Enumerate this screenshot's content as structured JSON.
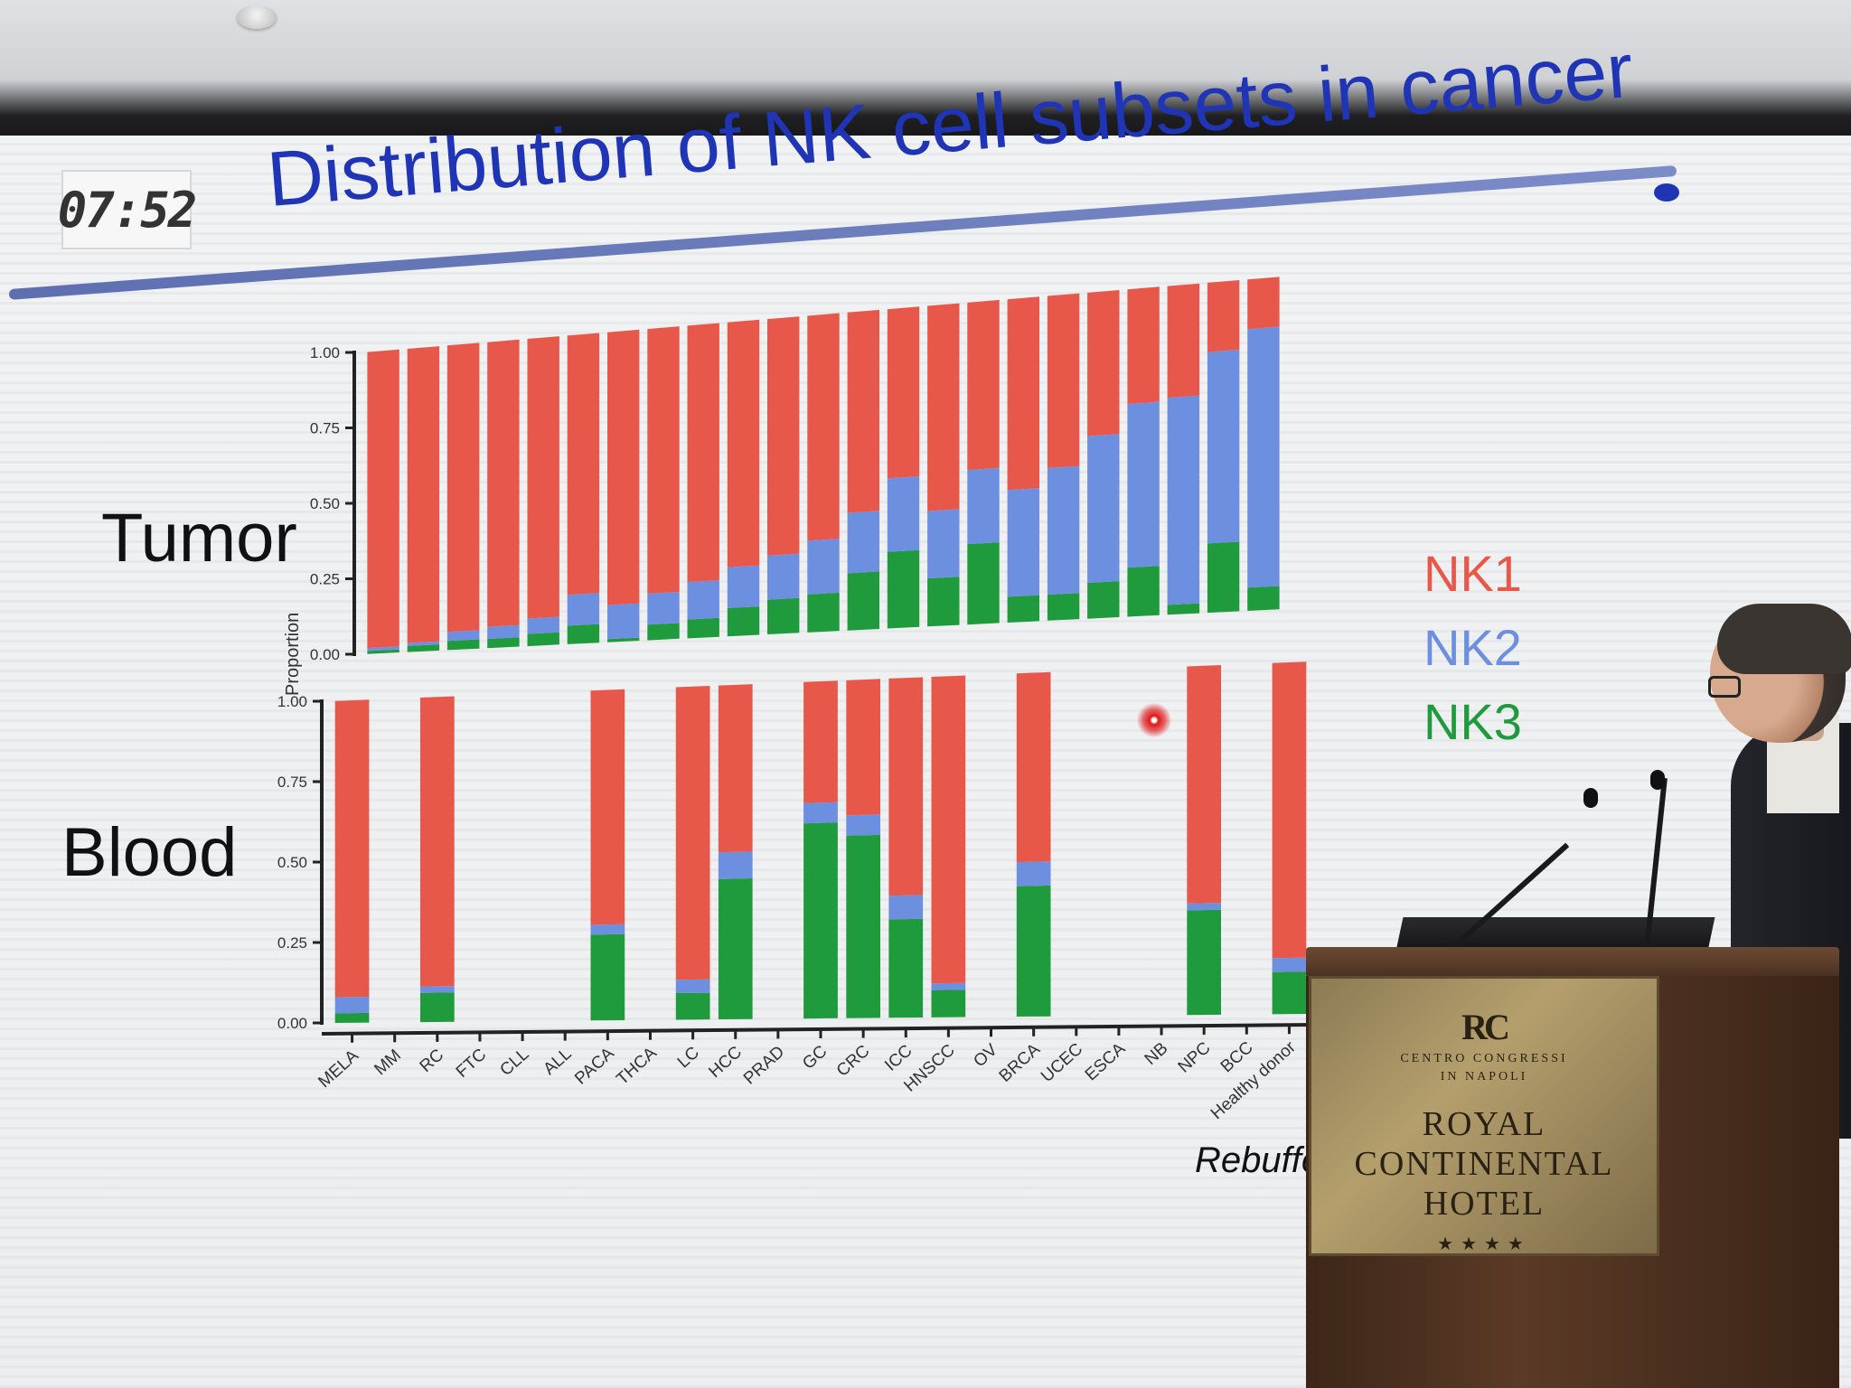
{
  "slide": {
    "timer": "07:52",
    "title": "Distribution of NK cell subsets in cancer",
    "row_labels": {
      "tumor": "Tumor",
      "blood": "Blood"
    },
    "y_axis_label": "Proportion",
    "citation": "Rebuffe"
  },
  "colors": {
    "NK1": "#e8584a",
    "NK2": "#6c8fe0",
    "NK3": "#1f9a3c",
    "title": "#1f35b5"
  },
  "legend": [
    "NK1",
    "NK2",
    "NK3"
  ],
  "podium": {
    "logo": "RC",
    "small_text_1": "CENTRO CONGRESSI",
    "small_text_2": "IN NAPOLI",
    "name_1": "ROYAL",
    "name_2": "CONTINENTAL",
    "name_3": "HOTEL",
    "stars": "★★★★"
  },
  "chart_data": [
    {
      "type": "bar",
      "stacked": true,
      "panel": "Tumor",
      "ylabel": "Proportion",
      "ylim": [
        0,
        1
      ],
      "yticks": [
        "0.00",
        "0.25",
        "0.50",
        "0.75",
        "1.00"
      ],
      "categories": [
        "MELA",
        "MM",
        "RC",
        "FTC",
        "CLL",
        "ALL",
        "PACA",
        "THCA",
        "LC",
        "HCC",
        "PRAD",
        "GC",
        "CRC",
        "ICC",
        "HNSCC",
        "OV",
        "BRCA",
        "UCEC",
        "ESCA",
        "NB",
        "NPC",
        "BCC",
        "Healthy donor"
      ],
      "series": [
        {
          "name": "NK3",
          "values": [
            0.01,
            0.02,
            0.03,
            0.03,
            0.04,
            0.06,
            0.01,
            0.05,
            0.06,
            0.09,
            0.11,
            0.12,
            0.18,
            0.24,
            0.15,
            0.25,
            0.08,
            0.08,
            0.11,
            0.15,
            0.03,
            0.21,
            0.07
          ]
        },
        {
          "name": "NK2",
          "values": [
            0.01,
            0.01,
            0.03,
            0.04,
            0.05,
            0.1,
            0.11,
            0.1,
            0.12,
            0.13,
            0.14,
            0.17,
            0.19,
            0.23,
            0.21,
            0.23,
            0.33,
            0.39,
            0.45,
            0.5,
            0.63,
            0.58,
            0.78
          ]
        },
        {
          "name": "NK1",
          "values": [
            0.98,
            0.97,
            0.94,
            0.93,
            0.91,
            0.84,
            0.88,
            0.85,
            0.82,
            0.78,
            0.75,
            0.71,
            0.63,
            0.53,
            0.64,
            0.52,
            0.59,
            0.53,
            0.44,
            0.35,
            0.34,
            0.21,
            0.15
          ]
        }
      ]
    },
    {
      "type": "bar",
      "stacked": true,
      "panel": "Blood",
      "ylabel": "Proportion",
      "ylim": [
        0,
        1
      ],
      "yticks": [
        "0.00",
        "0.25",
        "0.50",
        "0.75",
        "1.00"
      ],
      "categories": [
        "MELA",
        "MM",
        "RC",
        "FTC",
        "CLL",
        "ALL",
        "PACA",
        "THCA",
        "LC",
        "HCC",
        "PRAD",
        "GC",
        "CRC",
        "ICC",
        "HNSCC",
        "OV",
        "BRCA",
        "UCEC",
        "ESCA",
        "NB",
        "NPC",
        "BCC",
        "Healthy donor"
      ],
      "series": [
        {
          "name": "NK3",
          "values": [
            0.03,
            0,
            0.09,
            0,
            0,
            0,
            0.26,
            0,
            0.08,
            0.42,
            0,
            0.58,
            0.54,
            0.29,
            0.08,
            0,
            0.38,
            0,
            0,
            0,
            0.3,
            0,
            0.12
          ]
        },
        {
          "name": "NK2",
          "values": [
            0.05,
            0,
            0.02,
            0,
            0,
            0,
            0.03,
            0,
            0.04,
            0.08,
            0,
            0.06,
            0.06,
            0.07,
            0.02,
            0,
            0.07,
            0,
            0,
            0,
            0.02,
            0,
            0.04
          ]
        },
        {
          "name": "NK1",
          "values": [
            0.92,
            0,
            0.89,
            0,
            0,
            0,
            0.71,
            0,
            0.88,
            0.5,
            0,
            0.36,
            0.4,
            0.64,
            0.9,
            0,
            0.55,
            0,
            0,
            0,
            0.68,
            0,
            0.84
          ]
        }
      ]
    }
  ]
}
